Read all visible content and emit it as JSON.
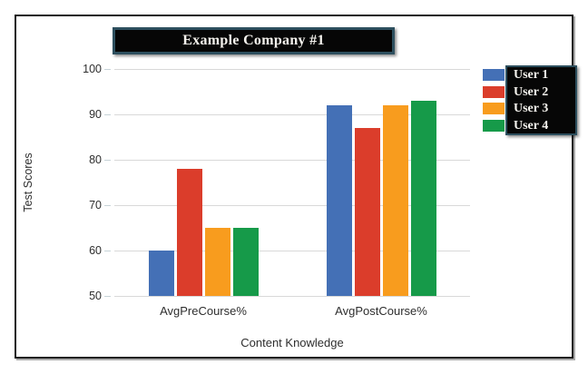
{
  "chart_data": {
    "type": "bar",
    "title": "Example Company #1",
    "xlabel": "Content Knowledge",
    "ylabel": "Test Scores",
    "categories": [
      "AvgPreCourse%",
      "AvgPostCourse%"
    ],
    "series": [
      {
        "name": "User 1",
        "color": "#4470B6",
        "values": [
          60,
          92
        ]
      },
      {
        "name": "User 2",
        "color": "#DB3D2B",
        "values": [
          78,
          87
        ]
      },
      {
        "name": "User 3",
        "color": "#F89C1E",
        "values": [
          65,
          92
        ]
      },
      {
        "name": "User 4",
        "color": "#169A49",
        "values": [
          65,
          93
        ]
      }
    ],
    "ylim": [
      50,
      100
    ],
    "yticks": [
      50,
      60,
      70,
      80,
      90,
      100
    ],
    "grid": true,
    "legend_position": "right"
  },
  "colors": {
    "frame_border": "#1b1b1b",
    "panel_border": "#2d4f5e",
    "panel_bg": "#060606",
    "gridline": "#d9d9d9",
    "axis_text": "#2e2e2e"
  }
}
